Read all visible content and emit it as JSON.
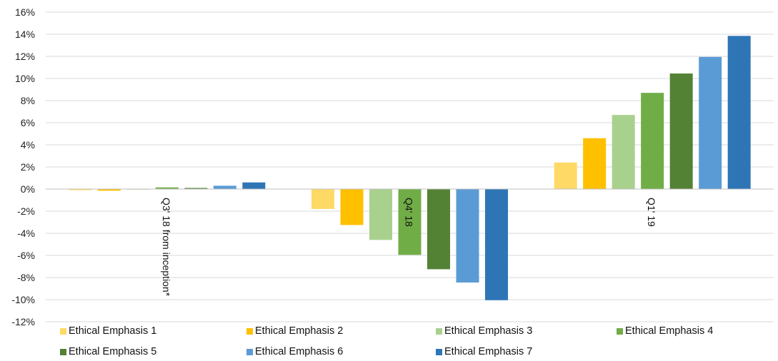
{
  "chart_data": {
    "type": "bar",
    "categories": [
      "Q3' 18 from inception*",
      "Q4' 18",
      "Q1' 19"
    ],
    "series": [
      {
        "name": "Ethical Emphasis 1",
        "color": "#FFD966",
        "values": [
          -0.1,
          -1.8,
          2.4
        ]
      },
      {
        "name": "Ethical Emphasis 2",
        "color": "#FFC000",
        "values": [
          -0.15,
          -3.25,
          4.6
        ]
      },
      {
        "name": "Ethical Emphasis 3",
        "color": "#A9D18E",
        "values": [
          -0.05,
          -4.6,
          6.7
        ]
      },
      {
        "name": "Ethical Emphasis 4",
        "color": "#70AD47",
        "values": [
          0.15,
          -5.95,
          8.7
        ]
      },
      {
        "name": "Ethical Emphasis 5",
        "color": "#548235",
        "values": [
          0.1,
          -7.25,
          10.45
        ]
      },
      {
        "name": "Ethical Emphasis 6",
        "color": "#5B9BD5",
        "values": [
          0.3,
          -8.45,
          11.95
        ]
      },
      {
        "name": "Ethical Emphasis 7",
        "color": "#2E75B6",
        "values": [
          0.6,
          -10.05,
          13.85
        ]
      }
    ],
    "ylim": [
      -12,
      16
    ],
    "yticks": [
      "-12%",
      "-10%",
      "-8%",
      "-6%",
      "-4%",
      "-2%",
      "0%",
      "2%",
      "4%",
      "6%",
      "8%",
      "10%",
      "12%",
      "14%",
      "16%"
    ],
    "grid": true,
    "legend": "bottom",
    "title": "",
    "xlabel": "",
    "ylabel": ""
  }
}
